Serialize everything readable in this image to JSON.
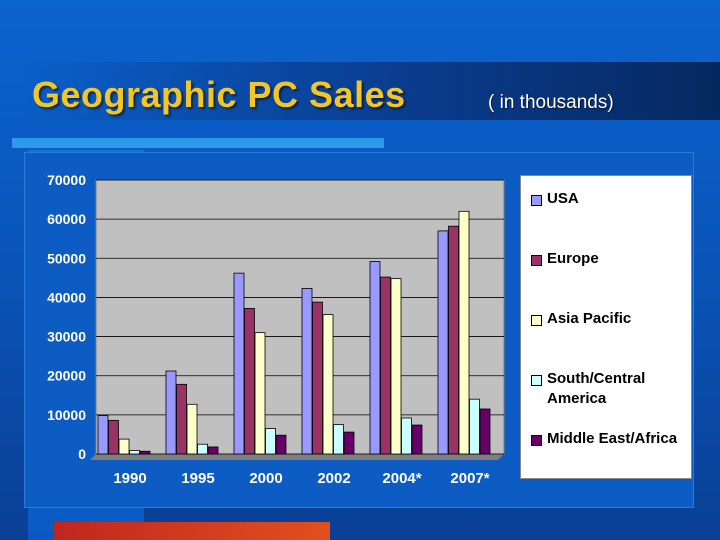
{
  "slide": {
    "title": "Geographic PC Sales",
    "subtitle": "( in thousands)"
  },
  "colors": {
    "title": "#f3c626",
    "background": "#0b5ac6",
    "plot_area": "#c0c0c0"
  },
  "chart_data": {
    "type": "bar",
    "title": "",
    "xlabel": "",
    "ylabel": "",
    "categories": [
      "1990",
      "1995",
      "2000",
      "2002",
      "2004*",
      "2007*"
    ],
    "ylim": [
      0,
      70000
    ],
    "yticks": [
      "0",
      "10000",
      "20000",
      "30000",
      "40000",
      "50000",
      "60000",
      "70000"
    ],
    "grid": true,
    "legend_position": "right",
    "series": [
      {
        "name": "USA",
        "color": "#9999ff",
        "values": [
          9800,
          21200,
          46200,
          42300,
          49200,
          57000
        ]
      },
      {
        "name": "Europe",
        "color": "#993366",
        "values": [
          8600,
          17800,
          37200,
          38800,
          45200,
          58200
        ]
      },
      {
        "name": "Asia Pacific",
        "color": "#ffffcc",
        "values": [
          3800,
          12700,
          31000,
          35600,
          44800,
          62000
        ]
      },
      {
        "name": "South/Central America",
        "color": "#ccffff",
        "values": [
          900,
          2500,
          6500,
          7500,
          9200,
          14000
        ]
      },
      {
        "name": "Middle East/Africa",
        "color": "#660066",
        "values": [
          700,
          1800,
          4800,
          5600,
          7400,
          11500
        ]
      }
    ]
  }
}
